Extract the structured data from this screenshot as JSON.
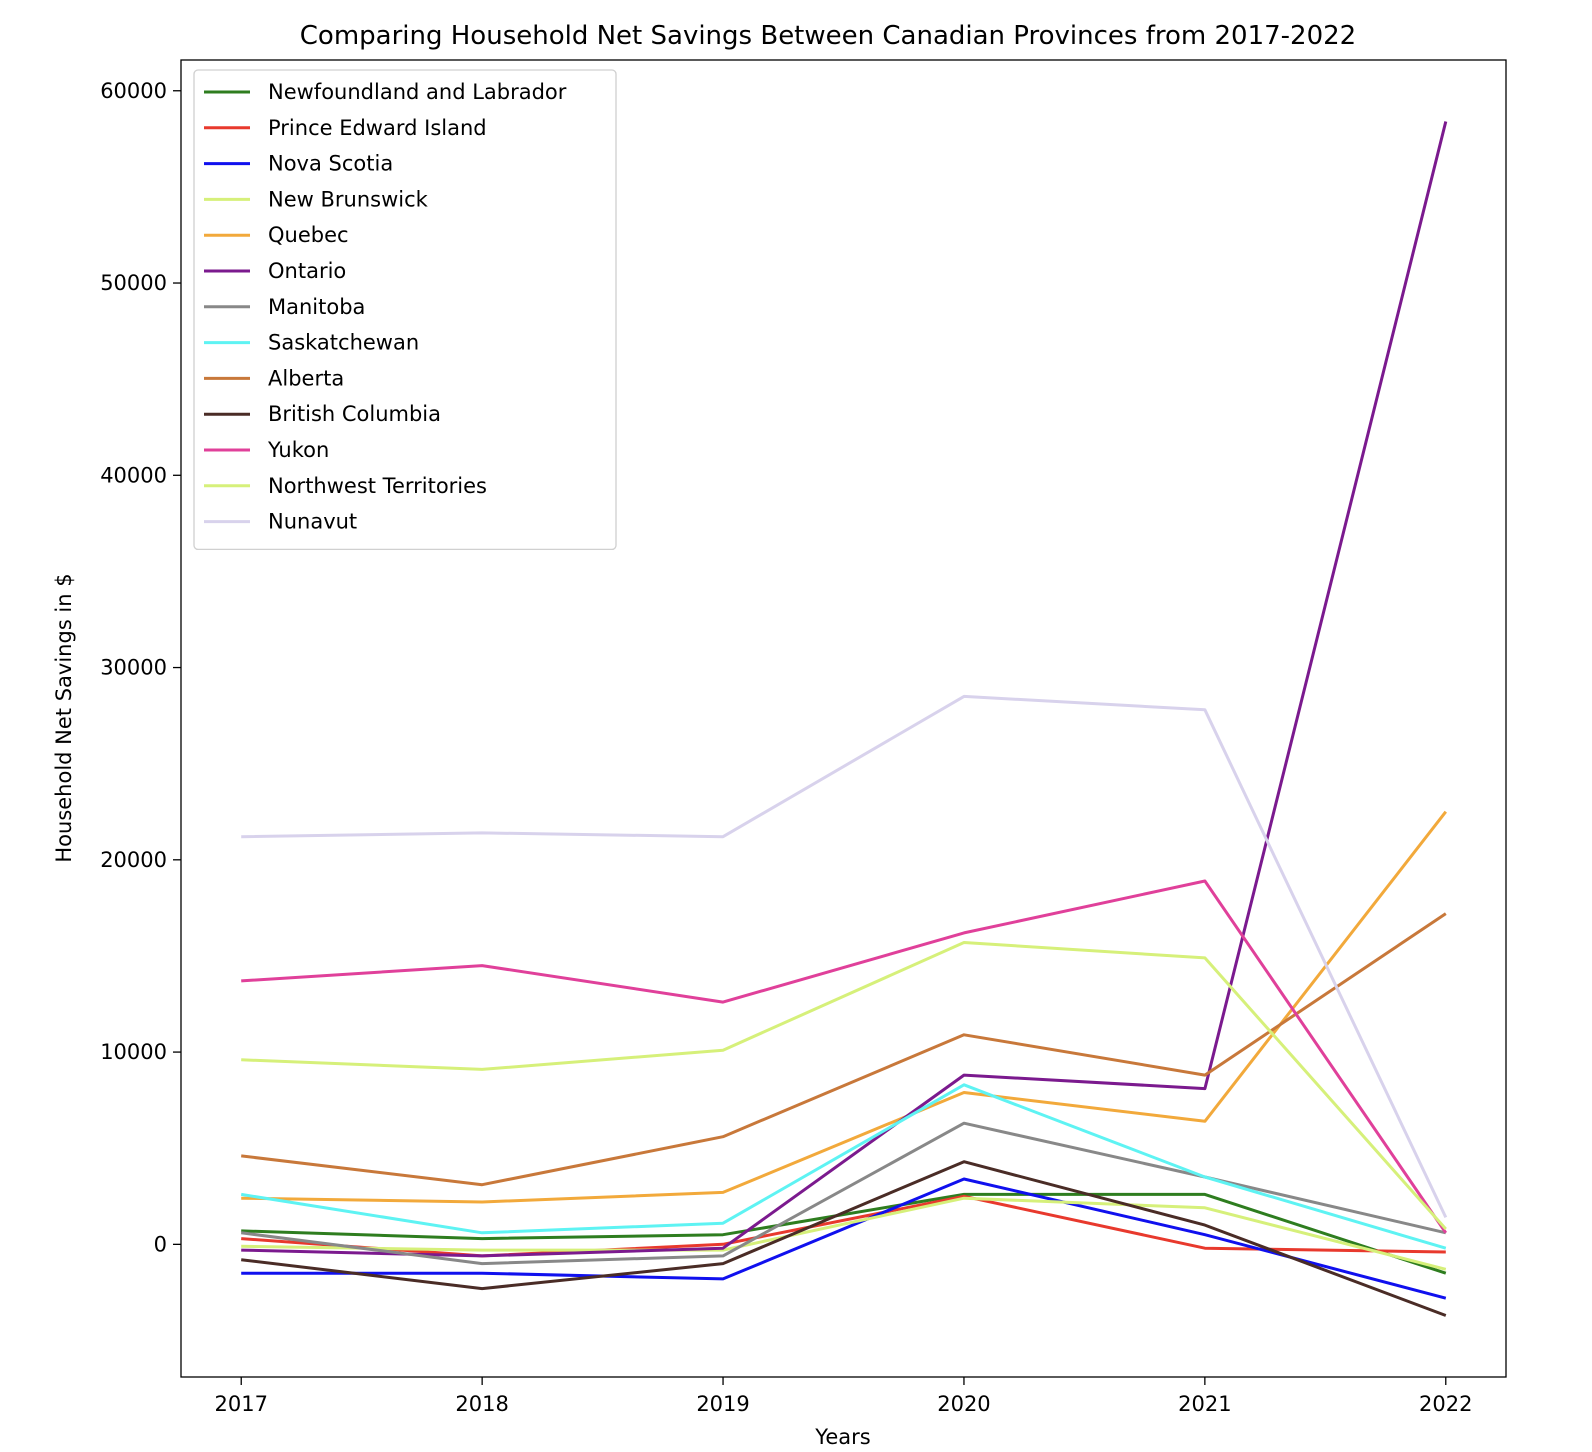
{
  "chart_data": {
    "type": "line",
    "title": "Comparing Household Net Savings Between Canadian Provinces from 2017-2022",
    "xlabel": "Years",
    "ylabel": "Household Net Savings in $",
    "x": [
      "2017",
      "2018",
      "2019",
      "2020",
      "2021",
      "2022"
    ],
    "xlim": [
      2016.75,
      2022.25
    ],
    "ylim": [
      -6900,
      61600
    ],
    "yticks": [
      "0",
      "10000",
      "20000",
      "30000",
      "40000",
      "50000",
      "60000"
    ],
    "grid": false,
    "legend_position": "upper left",
    "series": [
      {
        "name": "Newfoundland and Labrador",
        "color": "#2e7d1f",
        "values": [
          700,
          300,
          500,
          2600,
          2600,
          -1500
        ]
      },
      {
        "name": "Prince Edward Island",
        "color": "#e8392d",
        "values": [
          300,
          -600,
          0,
          2500,
          -200,
          -400
        ]
      },
      {
        "name": "Nova Scotia",
        "color": "#1010ee",
        "values": [
          -1500,
          -1500,
          -1800,
          3400,
          500,
          -2800
        ]
      },
      {
        "name": "New Brunswick",
        "color": "#d6f07a",
        "values": [
          -100,
          -300,
          -300,
          2400,
          1900,
          -1300
        ]
      },
      {
        "name": "Quebec",
        "color": "#f2a93b",
        "values": [
          2400,
          2200,
          2700,
          7900,
          6400,
          22500
        ]
      },
      {
        "name": "Ontario",
        "color": "#7b1a8e",
        "values": [
          -300,
          -600,
          -200,
          8800,
          8100,
          58400
        ]
      },
      {
        "name": "Manitoba",
        "color": "#888888",
        "values": [
          600,
          -1000,
          -600,
          6300,
          3500,
          600
        ]
      },
      {
        "name": "Saskatchewan",
        "color": "#5ef3f3",
        "values": [
          2600,
          600,
          1100,
          8300,
          3500,
          -200
        ]
      },
      {
        "name": "Alberta",
        "color": "#c8783a",
        "values": [
          4600,
          3100,
          5600,
          10900,
          8800,
          17200
        ]
      },
      {
        "name": "British Columbia",
        "color": "#4a2c26",
        "values": [
          -800,
          -2300,
          -1000,
          4300,
          1000,
          -3700
        ]
      },
      {
        "name": "Yukon",
        "color": "#e0409a",
        "values": [
          13700,
          14500,
          12600,
          16200,
          18900,
          600
        ]
      },
      {
        "name": "Northwest Territories",
        "color": "#d6f07a",
        "values": [
          9600,
          9100,
          10100,
          15700,
          14900,
          800
        ]
      },
      {
        "name": "Nunavut",
        "color": "#d8d2ec",
        "values": [
          21200,
          21400,
          21200,
          28500,
          27800,
          1400
        ]
      }
    ]
  }
}
